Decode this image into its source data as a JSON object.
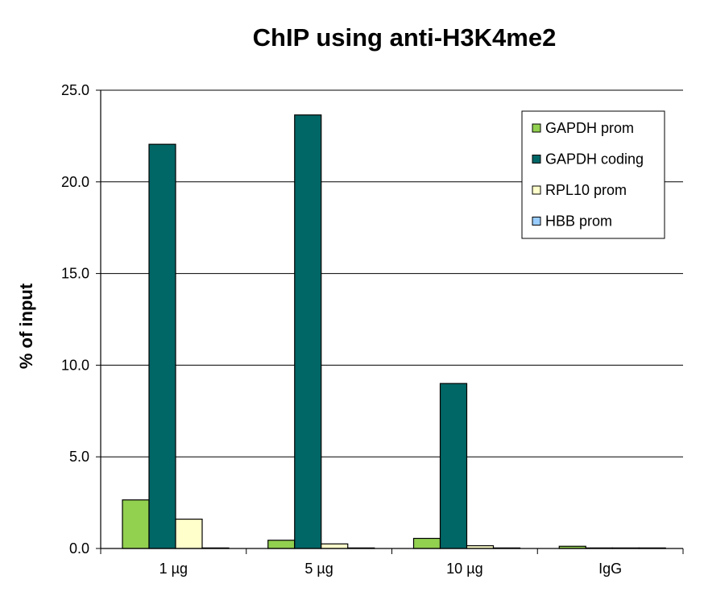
{
  "chart_data": {
    "type": "bar",
    "title": "ChIP using anti-H3K4me2",
    "xlabel": "",
    "ylabel": "% of input",
    "ylim": [
      0,
      25
    ],
    "yticks": [
      "0.0",
      "5.0",
      "10.0",
      "15.0",
      "20.0",
      "25.0"
    ],
    "categories": [
      "1 µg",
      "5 µg",
      "10 µg",
      "IgG"
    ],
    "series": [
      {
        "name": "GAPDH prom",
        "color": "#92d050",
        "values": [
          2.65,
          0.45,
          0.55,
          0.12
        ]
      },
      {
        "name": "GAPDH coding",
        "color": "#006666",
        "values": [
          22.05,
          23.65,
          9.0,
          0.03
        ]
      },
      {
        "name": "RPL10 prom",
        "color": "#ffffcc",
        "values": [
          1.6,
          0.25,
          0.15,
          0.03
        ]
      },
      {
        "name": "HBB prom",
        "color": "#99ccff",
        "values": [
          0.03,
          0.03,
          0.03,
          0.03
        ]
      }
    ],
    "grid": true,
    "legend": "top-right"
  }
}
